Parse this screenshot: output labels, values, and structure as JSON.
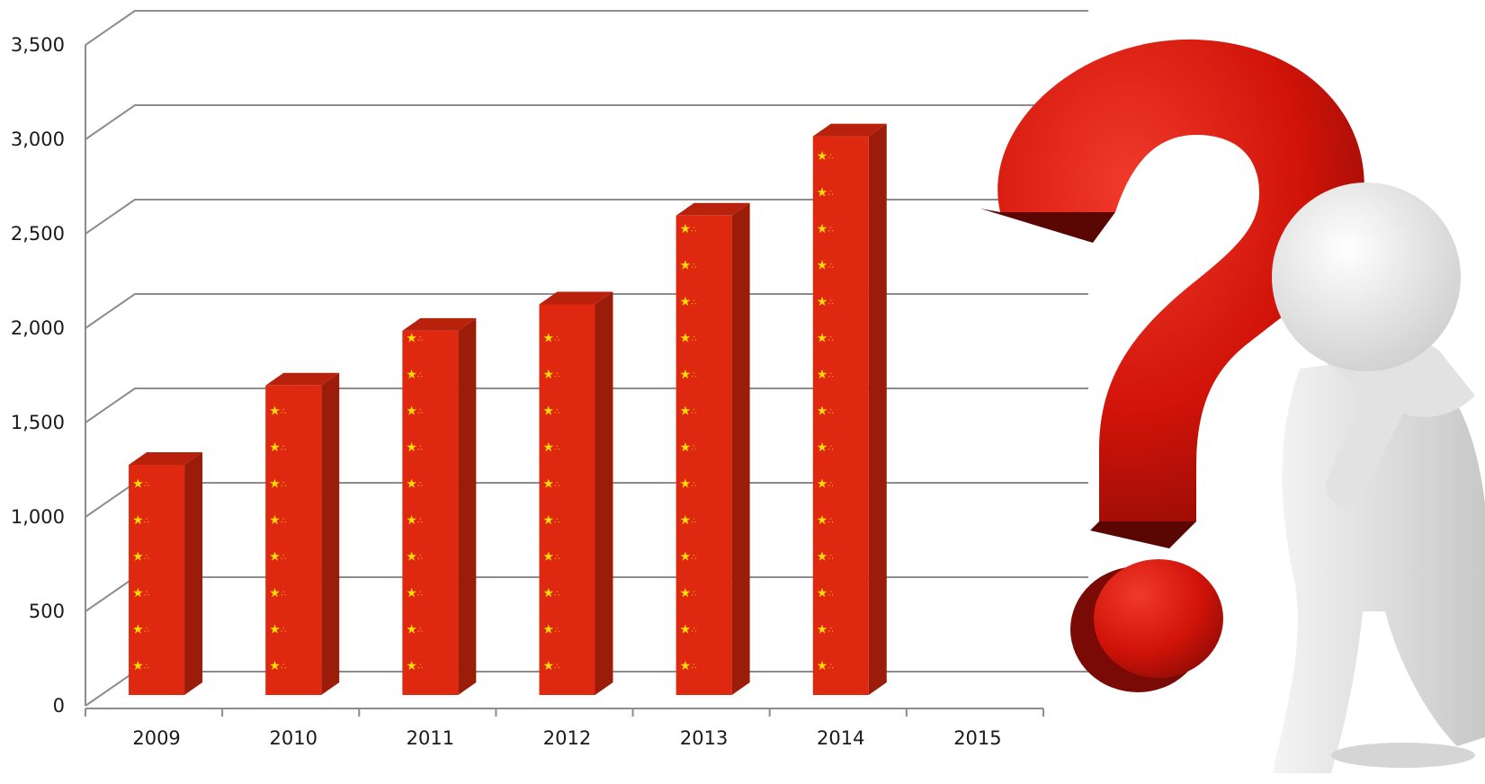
{
  "chart_data": {
    "type": "bar",
    "title": "",
    "xlabel": "",
    "ylabel": "",
    "categories": [
      "2009",
      "2010",
      "2011",
      "2012",
      "2013",
      "2014",
      "2015"
    ],
    "values": [
      1300,
      1720,
      2010,
      2150,
      2620,
      3040,
      null
    ],
    "ylim": [
      0,
      3500
    ],
    "yticks": [
      0,
      500,
      1000,
      1500,
      2000,
      2500,
      3000,
      3500
    ],
    "ytick_labels": [
      "0",
      "500",
      "1,000",
      "1,500",
      "2,000",
      "2,500",
      "3,000",
      "3,500"
    ],
    "grid": true,
    "legend": "none",
    "colors": {
      "bar_front": "#df2810",
      "bar_side": "#9c1c0a",
      "bar_top": "#b8220d",
      "star": "#ffde00",
      "grid": "#8c8c8c",
      "question_mark": "#d8120e"
    }
  },
  "decoration": {
    "question_mark_icon": "question-mark-3d-icon",
    "figure_icon": "thinking-person-figure-icon"
  }
}
